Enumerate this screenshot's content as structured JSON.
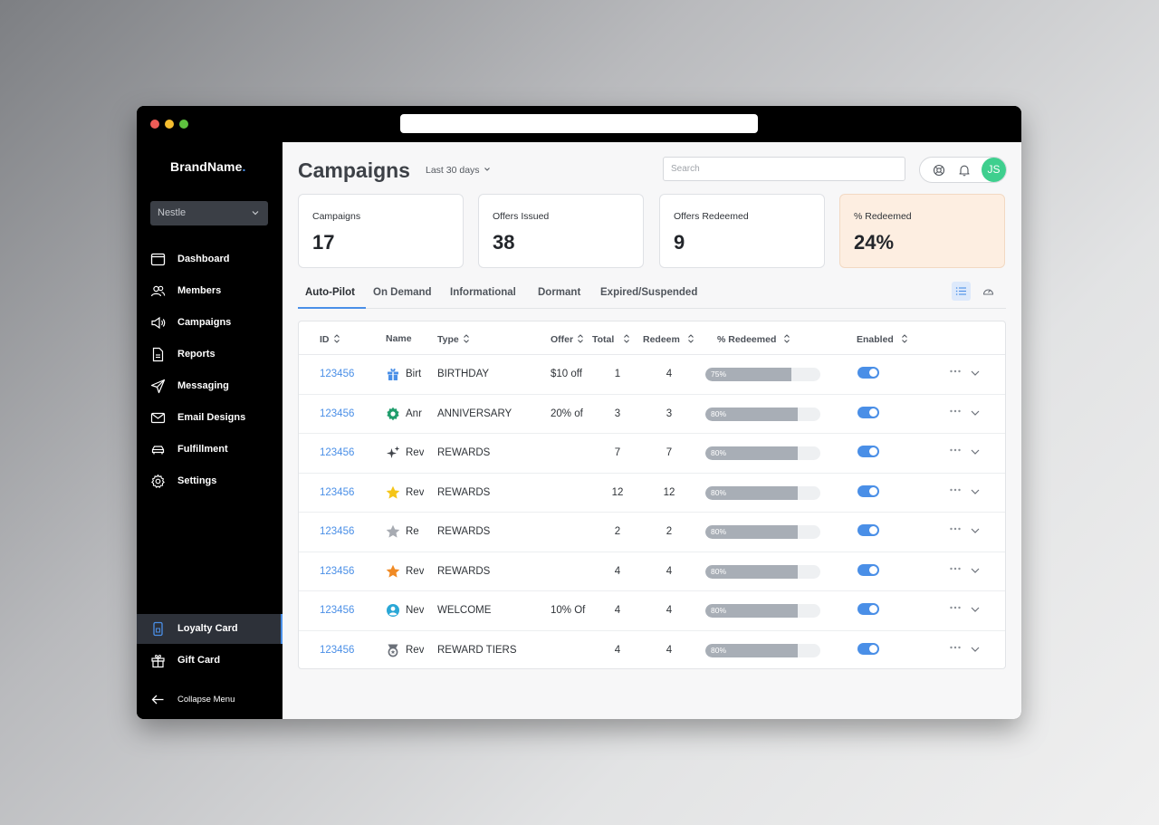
{
  "app": {
    "brand": "BrandName",
    "brand_dot": ".",
    "org": "Nestle"
  },
  "sidebar": {
    "items": [
      {
        "label": "Dashboard",
        "icon": "calendar-icon"
      },
      {
        "label": "Members",
        "icon": "users-icon"
      },
      {
        "label": "Campaigns",
        "icon": "megaphone-icon"
      },
      {
        "label": "Reports",
        "icon": "document-icon"
      },
      {
        "label": "Messaging",
        "icon": "send-icon"
      },
      {
        "label": "Email Designs",
        "icon": "envelope-icon"
      },
      {
        "label": "Fulfillment",
        "icon": "car-icon"
      },
      {
        "label": "Settings",
        "icon": "gear-icon"
      }
    ],
    "bottom": [
      {
        "label": "Loyalty Card",
        "icon": "phone-card-icon",
        "active": true
      },
      {
        "label": "Gift Card",
        "icon": "gift-icon"
      }
    ],
    "collapse": "Collapse Menu"
  },
  "header": {
    "title": "Campaigns",
    "range": "Last 30 days",
    "search_placeholder": "Search",
    "avatar_initials": "JS"
  },
  "stats": [
    {
      "label": "Campaigns",
      "value": "17"
    },
    {
      "label": "Offers Issued",
      "value": "38"
    },
    {
      "label": "Offers Redeemed",
      "value": "9"
    },
    {
      "label": "% Redeemed",
      "value": "24%"
    }
  ],
  "tabs": [
    "Auto-Pilot",
    "On Demand",
    "Informational",
    "Dormant",
    "Expired/Suspended"
  ],
  "table": {
    "headers": {
      "id": "ID",
      "name": "Name",
      "type": "Type",
      "offer": "Offer",
      "total": "Total",
      "redeem": "Redeem",
      "pct": "% Redeemed",
      "enabled": "Enabled"
    },
    "rows": [
      {
        "id": "123456",
        "name": "Birt",
        "type": "BIRTHDAY",
        "offer": "$10 off",
        "total": "1",
        "redeem": "4",
        "pct": "75%",
        "pct_value": 0.75,
        "enabled": true,
        "icon": "gift-icon",
        "icon_color": "#4a8fe7"
      },
      {
        "id": "123456",
        "name": "Anr",
        "type": "ANNIVERSARY",
        "offer": "20% of",
        "total": "3",
        "redeem": "3",
        "pct": "80%",
        "pct_value": 0.8,
        "enabled": true,
        "icon": "badge-icon",
        "icon_color": "#1f9d6c"
      },
      {
        "id": "123456",
        "name": "Rev",
        "type": "REWARDS",
        "offer": "",
        "total": "7",
        "redeem": "7",
        "pct": "80%",
        "pct_value": 0.8,
        "enabled": true,
        "icon": "sparkle-icon",
        "icon_color": "#3d4147"
      },
      {
        "id": "123456",
        "name": "Rev",
        "type": "REWARDS",
        "offer": "",
        "total": "12",
        "redeem": "12",
        "pct": "80%",
        "pct_value": 0.8,
        "enabled": true,
        "icon": "star-icon",
        "icon_color": "#f5c518"
      },
      {
        "id": "123456",
        "name": "Re",
        "type": "REWARDS",
        "offer": "",
        "total": "2",
        "redeem": "2",
        "pct": "80%",
        "pct_value": 0.8,
        "enabled": true,
        "icon": "star-icon",
        "icon_color": "#a7abb2"
      },
      {
        "id": "123456",
        "name": "Rev",
        "type": "REWARDS",
        "offer": "",
        "total": "4",
        "redeem": "4",
        "pct": "80%",
        "pct_value": 0.8,
        "enabled": true,
        "icon": "star-icon",
        "icon_color": "#f08a24"
      },
      {
        "id": "123456",
        "name": "Nev",
        "type": "WELCOME",
        "offer": "10% Of",
        "total": "4",
        "redeem": "4",
        "pct": "80%",
        "pct_value": 0.8,
        "enabled": true,
        "icon": "user-circle-icon",
        "icon_color": "#2aa7d6"
      },
      {
        "id": "123456",
        "name": "Rev",
        "type": "REWARD TIERS",
        "offer": "",
        "total": "4",
        "redeem": "4",
        "pct": "80%",
        "pct_value": 0.8,
        "enabled": true,
        "icon": "medal-icon",
        "icon_color": "#6b7079"
      }
    ]
  },
  "colors": {
    "accent": "#4a8fe7",
    "avatar": "#3ecf8e",
    "highlight_card": "#fdeee1"
  }
}
